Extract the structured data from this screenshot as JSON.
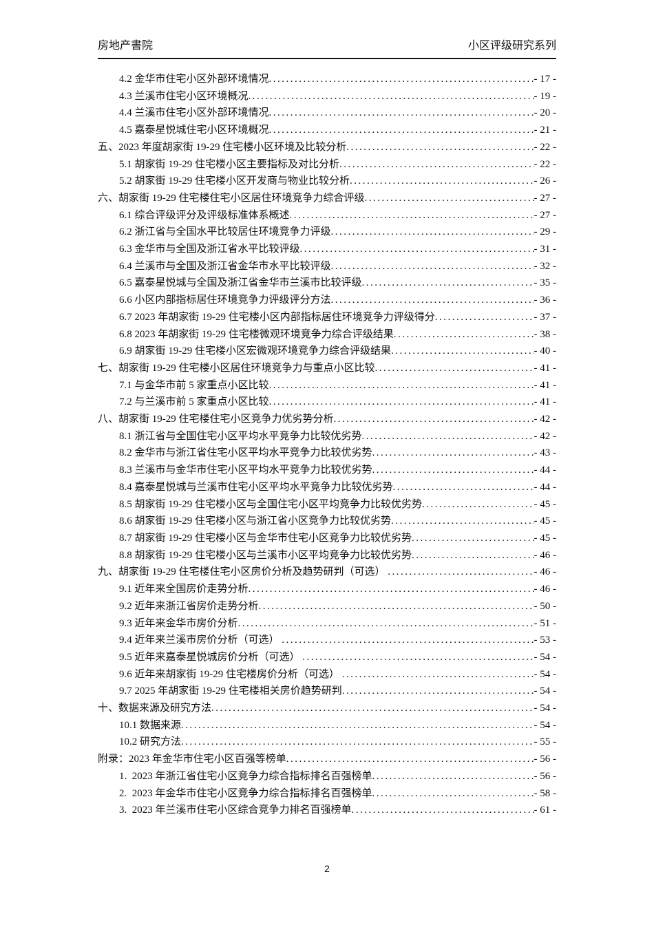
{
  "header": {
    "left": "房地产書院",
    "right": "小区评级研究系列"
  },
  "toc": {
    "entries": [
      {
        "level": 2,
        "label": "4.2 金华市住宅小区外部环境情况",
        "page": "- 17 -"
      },
      {
        "level": 2,
        "label": "4.3 兰溪市住宅小区环境概况",
        "page": "- 19 -"
      },
      {
        "level": 2,
        "label": "4.4 兰溪市住宅小区外部环境情况",
        "page": "- 20 -"
      },
      {
        "level": 2,
        "label": "4.5 嘉泰星悦城住宅小区环境概况",
        "page": "- 21 -"
      },
      {
        "level": 1,
        "label": "五、2023 年度胡家街 19-29 住宅楼小区环境及比较分析",
        "page": "- 22 -"
      },
      {
        "level": 2,
        "label": "5.1 胡家街 19-29 住宅楼小区主要指标及对比分析",
        "page": "- 22 -"
      },
      {
        "level": 2,
        "label": "5.2 胡家街 19-29 住宅楼小区开发商与物业比较分析",
        "page": "- 26 -"
      },
      {
        "level": 1,
        "label": "六、胡家街 19-29 住宅楼住宅小区居住环境竞争力综合评级",
        "page": "- 27 -"
      },
      {
        "level": 2,
        "label": "6.1 综合评级评分及评级标准体系概述",
        "page": "- 27 -"
      },
      {
        "level": 2,
        "label": "6.2 浙江省与全国水平比较居住环境竞争力评级",
        "page": "- 29 -"
      },
      {
        "level": 2,
        "label": "6.3 金华市与全国及浙江省水平比较评级",
        "page": "- 31 -"
      },
      {
        "level": 2,
        "label": "6.4 兰溪市与全国及浙江省金华市水平比较评级",
        "page": "- 32 -"
      },
      {
        "level": 2,
        "label": "6.5 嘉泰星悦城与全国及浙江省金华市兰溪市比较评级",
        "page": "- 35 -"
      },
      {
        "level": 2,
        "label": "6.6 小区内部指标居住环境竞争力评级评分方法",
        "page": "- 36 -"
      },
      {
        "level": 2,
        "label": "6.7 2023 年胡家街 19-29 住宅楼小区内部指标居住环境竞争力评级得分",
        "page": "- 37 -"
      },
      {
        "level": 2,
        "label": "6.8 2023 年胡家街 19-29 住宅楼微观环境竞争力综合评级结果",
        "page": "- 38 -"
      },
      {
        "level": 2,
        "label": "6.9 胡家街 19-29 住宅楼小区宏微观环境竞争力综合评级结果",
        "page": "- 40 -"
      },
      {
        "level": 1,
        "label": "七、胡家街 19-29 住宅楼小区居住环境竞争力与重点小区比较",
        "page": "- 41 -"
      },
      {
        "level": 2,
        "label": "7.1 与金华市前 5 家重点小区比较",
        "page": "- 41 -"
      },
      {
        "level": 2,
        "label": "7.2 与兰溪市前 5 家重点小区比较",
        "page": "- 41 -"
      },
      {
        "level": 1,
        "label": "八、胡家街 19-29 住宅楼住宅小区竞争力优劣势分析",
        "page": "- 42 -"
      },
      {
        "level": 2,
        "label": "8.1 浙江省与全国住宅小区平均水平竞争力比较优劣势",
        "page": "- 42 -"
      },
      {
        "level": 2,
        "label": "8.2 金华市与浙江省住宅小区平均水平竞争力比较优劣势",
        "page": "- 43 -"
      },
      {
        "level": 2,
        "label": "8.3 兰溪市与金华市住宅小区平均水平竞争力比较优劣势",
        "page": "- 44 -"
      },
      {
        "level": 2,
        "label": "8.4 嘉泰星悦城与兰溪市住宅小区平均水平竞争力比较优劣势",
        "page": "- 44 -"
      },
      {
        "level": 2,
        "label": "8.5 胡家街 19-29 住宅楼小区与全国住宅小区平均竞争力比较优劣势",
        "page": "- 45 -"
      },
      {
        "level": 2,
        "label": "8.6 胡家街 19-29 住宅楼小区与浙江省小区竞争力比较优劣势",
        "page": "- 45 -"
      },
      {
        "level": 2,
        "label": "8.7 胡家街 19-29 住宅楼小区与金华市住宅小区竞争力比较优劣势",
        "page": "- 45 -"
      },
      {
        "level": 2,
        "label": "8.8 胡家街 19-29 住宅楼小区与兰溪市小区平均竞争力比较优劣势",
        "page": "- 46 -"
      },
      {
        "level": 1,
        "label": "九、胡家街 19-29 住宅楼住宅小区房价分析及趋势研判（可选） ",
        "page": "- 46 -"
      },
      {
        "level": 2,
        "label": "9.1 近年来全国房价走势分析",
        "page": "- 46 -"
      },
      {
        "level": 2,
        "label": "9.2 近年来浙江省房价走势分析",
        "page": "- 50 -"
      },
      {
        "level": 2,
        "label": "9.3 近年来金华市房价分析",
        "page": "- 51 -"
      },
      {
        "level": 2,
        "label": "9.4 近年来兰溪市房价分析（可选） ",
        "page": "- 53 -"
      },
      {
        "level": 2,
        "label": "9.5 近年来嘉泰星悦城房价分析（可选） ",
        "page": "- 54 -"
      },
      {
        "level": 2,
        "label": "9.6 近年来胡家街 19-29 住宅楼房价分析（可选） ",
        "page": "- 54 -"
      },
      {
        "level": 2,
        "label": "9.7 2025 年胡家街 19-29 住宅楼相关房价趋势研判",
        "page": "- 54 -"
      },
      {
        "level": 1,
        "label": "十、数据来源及研究方法",
        "page": "- 54 -"
      },
      {
        "level": 2,
        "label": "10.1 数据来源",
        "page": "- 54 -"
      },
      {
        "level": 2,
        "label": "10.2 研究方法",
        "page": "- 55 -"
      },
      {
        "level": 1,
        "label": "附录：2023 年金华市住宅小区百强等榜单",
        "page": "- 56 -"
      },
      {
        "level": 2,
        "label": "1.  2023 年浙江省住宅小区竞争力综合指标排名百强榜单",
        "page": "- 56 -"
      },
      {
        "level": 2,
        "label": "2.  2023 年金华市住宅小区竞争力综合指标排名百强榜单",
        "page": "- 58 -"
      },
      {
        "level": 2,
        "label": "3.  2023 年兰溪市住宅小区综合竞争力排名百强榜单",
        "page": "- 61 -"
      }
    ]
  },
  "footer": {
    "page_number": "2"
  }
}
